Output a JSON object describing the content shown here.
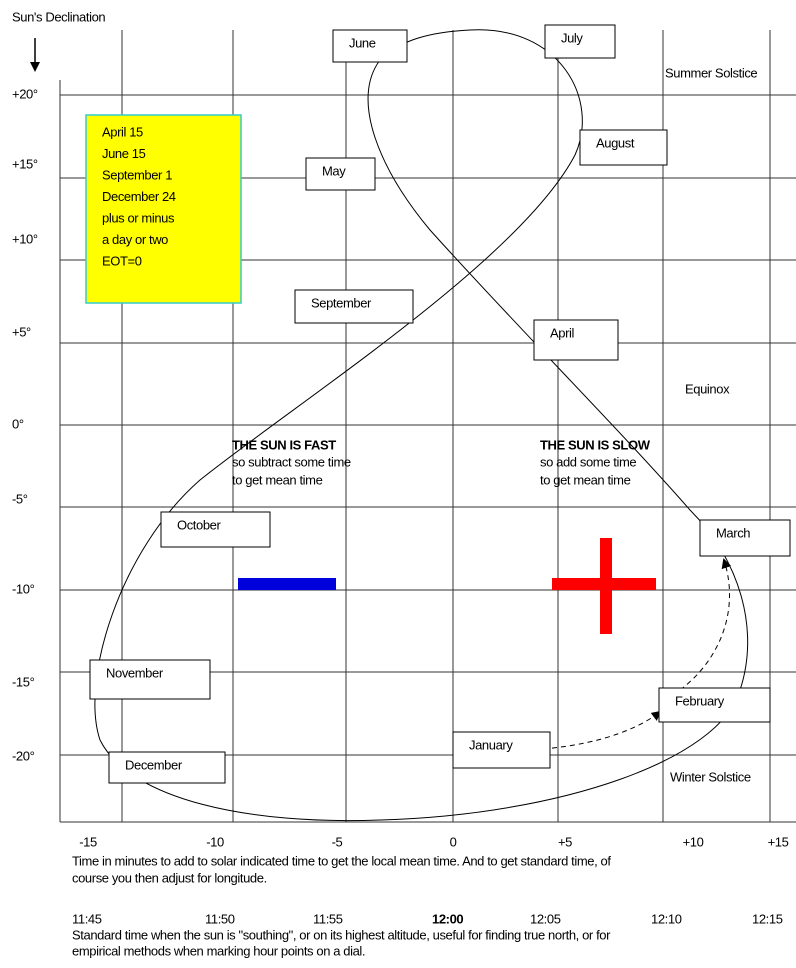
{
  "title": "Sun's Declination",
  "y_axis": {
    "labels": [
      "+20°",
      "+15°",
      "+10°",
      "+5°",
      "0°",
      "-5°",
      "-10°",
      "-15°",
      "-20°"
    ]
  },
  "x_axis": {
    "labels": [
      "-15",
      "-10",
      "-5",
      "0",
      "+5",
      "+10",
      "+15"
    ],
    "caption": [
      "Time in minutes to add to solar indicated time to get the local mean time. And to get standard time, of",
      "course you then adjust for longitude."
    ]
  },
  "time_axis": {
    "labels": [
      "11:45",
      "11:50",
      "11:55",
      "12:00",
      "12:05",
      "12:10",
      "12:15"
    ],
    "caption": [
      "Standard time when the sun is \"southing\", or on its highest altitude, useful for finding true north, or for",
      "empirical methods when marking hour points on a dial."
    ]
  },
  "months": [
    "June",
    "July",
    "May",
    "August",
    "September",
    "April",
    "October",
    "March",
    "November",
    "February",
    "January",
    "December"
  ],
  "note": [
    "April 15",
    "June 15",
    "September 1",
    "December 24",
    "plus or minus",
    "a day or two",
    "EOT=0"
  ],
  "annotations": {
    "summer_solstice": "Summer Solstice",
    "equinox": "Equinox",
    "winter_solstice": "Winter Solstice"
  },
  "fast": {
    "heading": "THE SUN IS FAST",
    "lines": [
      "so subtract some time",
      "to get mean time"
    ]
  },
  "slow": {
    "heading": "THE SUN IS SLOW",
    "lines": [
      "so add some time",
      "to get mean time"
    ]
  }
}
